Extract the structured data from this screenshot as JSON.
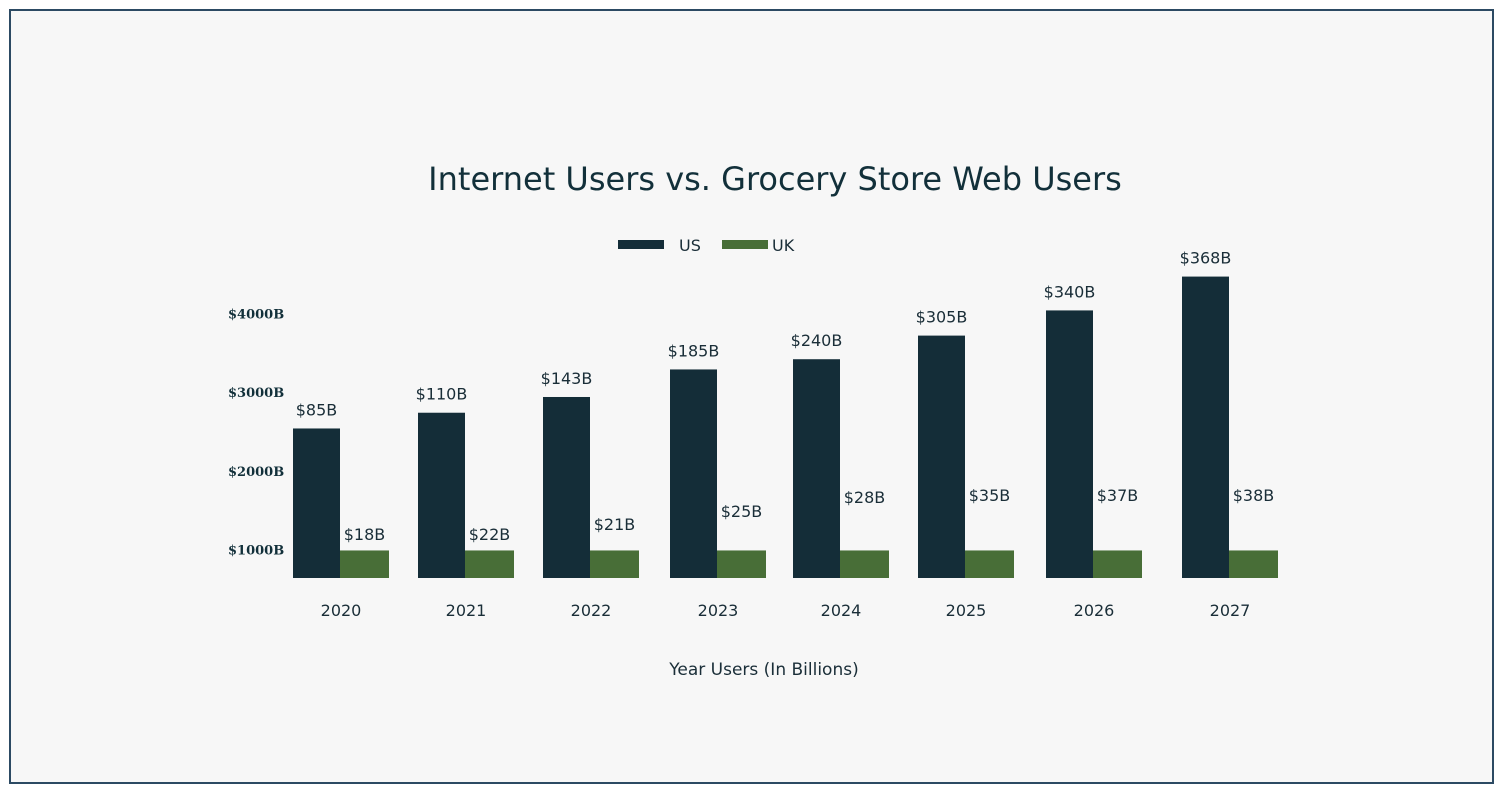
{
  "chart_data": {
    "type": "bar",
    "title": "Internet Users vs. Grocery Store Web Users",
    "xlabel": "Year Users (In Billions)",
    "ylabel": "",
    "categories": [
      "2020",
      "2021",
      "2022",
      "2023",
      "2024",
      "2025",
      "2026",
      "2027"
    ],
    "y_ticks": [
      "$1000B",
      "$2000B",
      "$3000B",
      "$4000B"
    ],
    "series": [
      {
        "name": "US",
        "color": "#142d38",
        "values": [
          85,
          110,
          143,
          185,
          240,
          305,
          340,
          368
        ],
        "labels": [
          "$85B",
          "$110B",
          "$143B",
          "$185B",
          "$240B",
          "$305B",
          "$340B",
          "$368B"
        ],
        "bar_levels": [
          2550,
          2750,
          2950,
          3300,
          3430,
          3730,
          4050,
          4480
        ]
      },
      {
        "name": "UK",
        "color": "#486e37",
        "values": [
          18,
          22,
          21,
          25,
          28,
          35,
          37,
          38
        ],
        "labels": [
          "$18B",
          "$22B",
          "$21B",
          "$25B",
          "$28B",
          "$35B",
          "$37B",
          "$38B"
        ],
        "bar_levels": [
          1000,
          1000,
          1000,
          1000,
          1000,
          1000,
          1000,
          1000
        ]
      }
    ],
    "grid": false,
    "legend_position": "top-center"
  }
}
